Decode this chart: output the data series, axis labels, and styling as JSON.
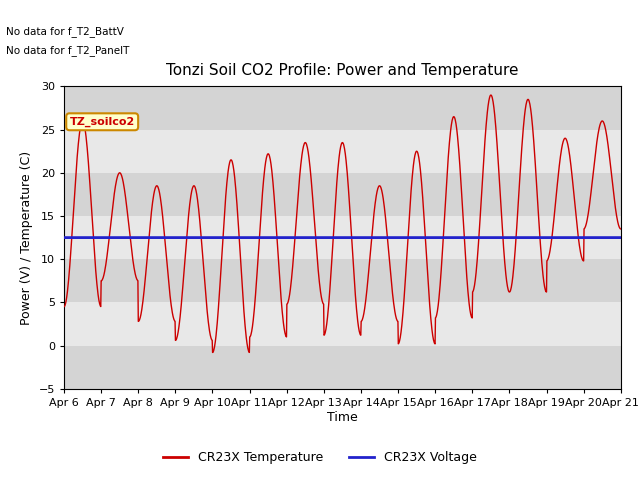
{
  "title": "Tonzi Soil CO2 Profile: Power and Temperature",
  "ylabel": "Power (V) / Temperature (C)",
  "xlabel": "Time",
  "ylim": [
    -5,
    30
  ],
  "yticks": [
    -5,
    0,
    5,
    10,
    15,
    20,
    25,
    30
  ],
  "xtick_labels": [
    "Apr 6",
    "Apr 7",
    "Apr 8",
    "Apr 9",
    "Apr 10",
    "Apr 11",
    "Apr 12",
    "Apr 13",
    "Apr 14",
    "Apr 15",
    "Apr 16",
    "Apr 17",
    "Apr 18",
    "Apr 19",
    "Apr 20",
    "Apr 21"
  ],
  "nodata_text1": "No data for f_T2_BattV",
  "nodata_text2": "No data for f_T2_PanelT",
  "legend_box_label": "TZ_soilco2",
  "temp_label": "CR23X Temperature",
  "volt_label": "CR23X Voltage",
  "voltage_value": 12.5,
  "fig_bg_color": "#ffffff",
  "plot_bg_color": "#e8e8e8",
  "band_dark": "#d4d4d4",
  "band_light": "#e8e8e8",
  "temp_color": "#cc0000",
  "volt_color": "#2222cc",
  "title_fontsize": 11,
  "axis_label_fontsize": 9,
  "tick_fontsize": 8,
  "num_days": 15,
  "temp_min_values": [
    4.5,
    7.5,
    2.8,
    0.6,
    -0.8,
    1.0,
    4.8,
    1.2,
    2.8,
    0.2,
    3.2,
    6.2,
    6.2,
    9.8,
    13.5
  ],
  "temp_max_values": [
    26.0,
    20.0,
    18.5,
    18.5,
    21.5,
    22.2,
    23.5,
    23.5,
    18.5,
    22.5,
    26.5,
    29.0,
    28.5,
    24.0,
    26.0
  ]
}
